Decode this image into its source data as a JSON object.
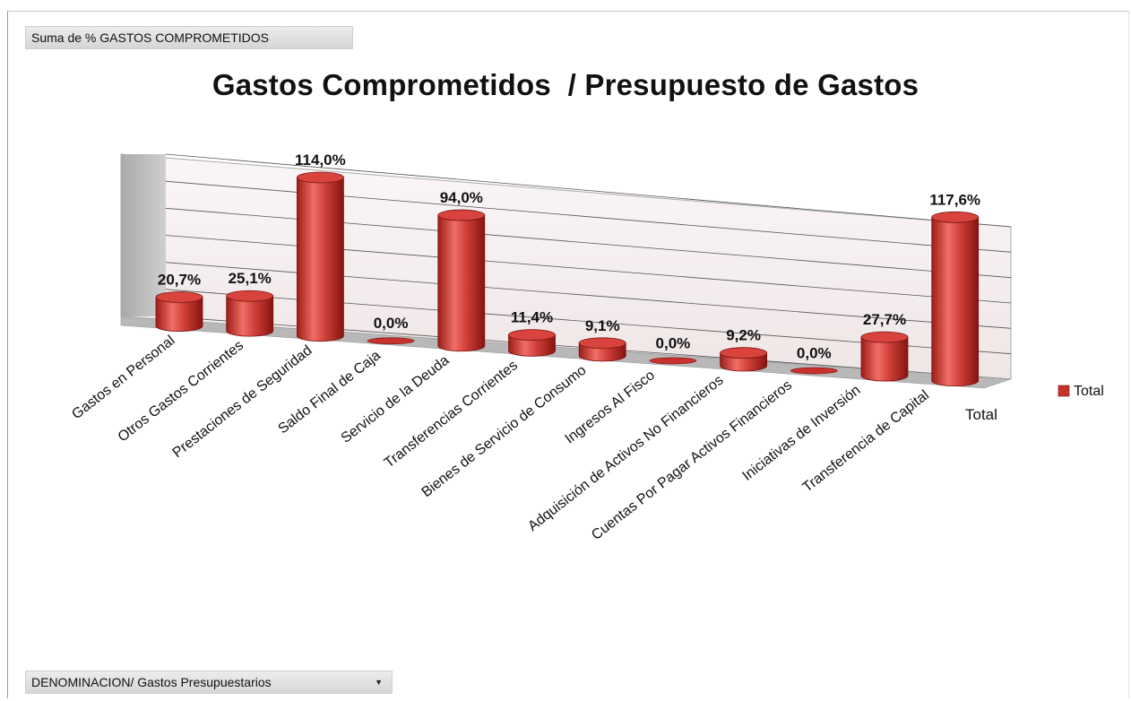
{
  "field_button": {
    "label": "Suma de % GASTOS COMPROMETIDOS"
  },
  "filter_button": {
    "label": "DENOMINACION/ Gastos Presupuestarios",
    "icon": "dropdown-arrow-icon"
  },
  "colors": {
    "bar": "#c8322d",
    "bar_light": "#ec6a62",
    "bar_dark": "#8e1512",
    "wall": "#f7f0f0",
    "floor": "#b0b0b0"
  },
  "chart_data": {
    "type": "bar",
    "title": "Gastos Comprometidos  / Presupuesto de Gastos",
    "categories": [
      "Gastos en Personal",
      "Otros Gastos Corrientes",
      "Prestaciones de Seguridad",
      "Saldo Final de Caja",
      "Servicio de la Deuda",
      "Transferencias Corrientes",
      "Bienes de Servicio de Consumo",
      "Ingresos Al Fisco",
      "Adquisición de Activos No Financieros",
      "Cuentas Por Pagar Activos Financieros",
      "Iniciativas de Inversión",
      "Transferencia de Capital"
    ],
    "series": [
      {
        "name": "Total",
        "values": [
          20.7,
          25.1,
          114.0,
          0.0,
          94.0,
          11.4,
          9.1,
          0.0,
          9.2,
          0.0,
          27.7,
          117.6
        ],
        "labels": [
          "20,7%",
          "25,1%",
          "114,0%",
          "0,0%",
          "94,0%",
          "11,4%",
          "9,1%",
          "0,0%",
          "9,2%",
          "0,0%",
          "27,7%",
          "117,6%"
        ]
      }
    ],
    "depth_axis_label": "Total",
    "legend": {
      "position": "right",
      "entries": [
        "Total"
      ]
    },
    "grid": true,
    "shape": "cylinder-3d"
  }
}
